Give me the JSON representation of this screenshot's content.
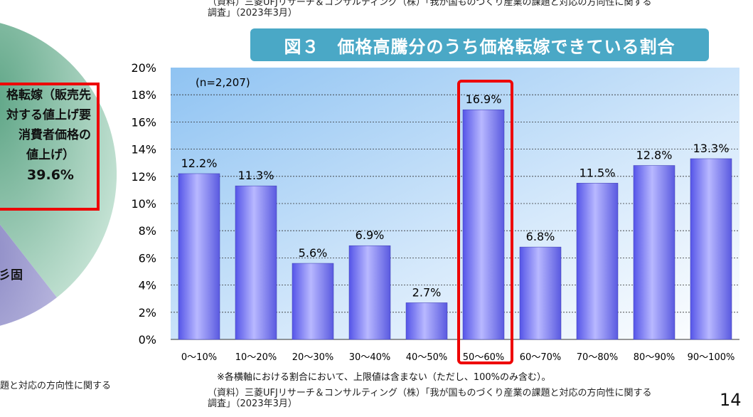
{
  "source_top": [
    "（資料）三菱UFJリサーチ＆コンサルティング（株）「我が国ものづくり産業の課題と対応の方向性に関する",
    "調査」（2023年3月）"
  ],
  "source_bottom": [
    "（資料）三菱UFJリサーチ＆コンサルティング（株）「我が国ものづくり産業の課題と対応の方向性に関する",
    "調査」（2023年3月）"
  ],
  "left_source_fragment": "題と対応の方向性に関する",
  "pie_fragment": {
    "lines": [
      "格転嫁（販売先",
      "対する値上げ要",
      "消費者価格の",
      "値上げ）"
    ],
    "value": "39.6%",
    "other_label": "彡固",
    "colors": [
      "#8fc4a8",
      "#a9a8d4"
    ]
  },
  "note": "※各横軸における割合において、上限値は含まない（ただし、100%のみ含む）。",
  "page_number": "14",
  "chart_data": {
    "type": "bar",
    "title": "図３　価格高騰分のうち価格転嫁できている割合",
    "annotation": "(n=2,207)",
    "categories": [
      "0～10%",
      "10～20%",
      "20～30%",
      "30～40%",
      "40～50%",
      "50～60%",
      "60～70%",
      "70～80%",
      "80～90%",
      "90～100%"
    ],
    "values": [
      12.2,
      11.3,
      5.6,
      6.9,
      2.7,
      16.9,
      6.8,
      11.5,
      12.8,
      13.3
    ],
    "data_labels": [
      "12.2%",
      "11.3%",
      "5.6%",
      "6.9%",
      "2.7%",
      "16.9%",
      "6.8%",
      "11.5%",
      "12.8%",
      "13.3%"
    ],
    "ylim": [
      0,
      20
    ],
    "yticks": [
      "0%",
      "2%",
      "4%",
      "6%",
      "8%",
      "10%",
      "12%",
      "14%",
      "16%",
      "18%",
      "20%"
    ],
    "grid": true,
    "highlighted_category": "50～60%",
    "bar_color": "#6f6ff0",
    "highlight_color": "#ee0000"
  }
}
